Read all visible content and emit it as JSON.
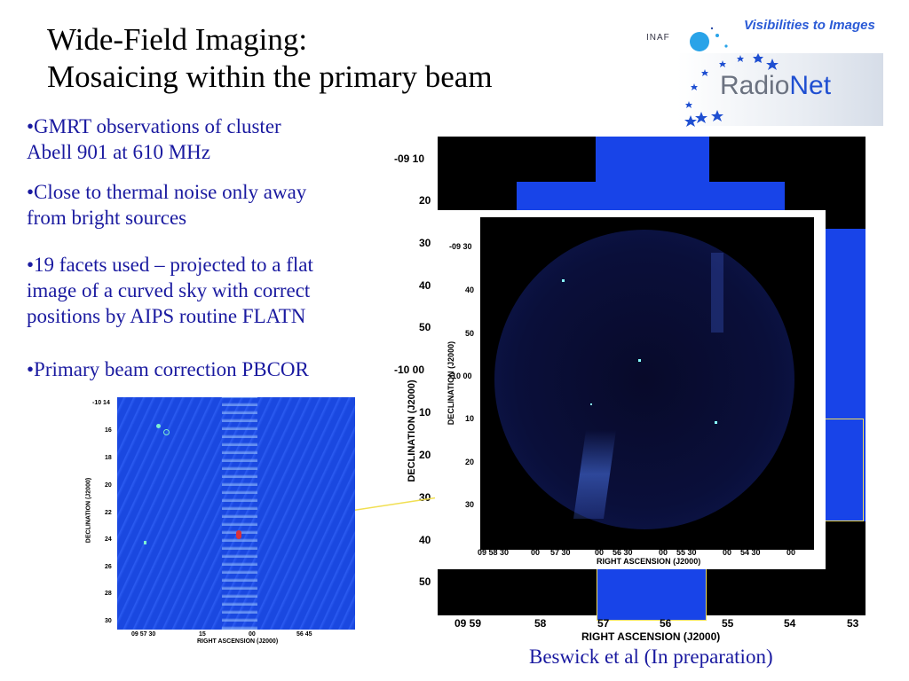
{
  "title": {
    "line1": "Wide-Field Imaging:",
    "line2": "Mosaicing within the primary beam"
  },
  "bullets": [
    {
      "line1": "•GMRT observations of cluster",
      "line2": "Abell 901 at 610 MHz"
    },
    {
      "line1": "•Close to thermal noise only away",
      "line2": "from bright sources"
    },
    {
      "line1": "•19 facets used – projected to a flat",
      "line2": "image of a curved sky with correct",
      "line3": "positions by AIPS routine FLATN"
    },
    {
      "line1": "•Primary beam correction PBCOR"
    }
  ],
  "logo": {
    "tagline": "Visibilities to Images",
    "inaf": "INAF",
    "radionet_a": "Radio",
    "radionet_b": "Net"
  },
  "caption": "Beswick et al (In preparation)",
  "big_map": {
    "ylabel": "DECLINATION (J2000)",
    "xlabel": "RIGHT ASCENSION (J2000)",
    "yticks": [
      "-09 10",
      "20",
      "30",
      "40",
      "50",
      "-10 00",
      "10",
      "20",
      "30",
      "40",
      "50"
    ],
    "xticks": [
      "09 59",
      "58",
      "57",
      "56",
      "55",
      "54",
      "53"
    ]
  },
  "mid_map": {
    "ylabel": "DECLINATION (J2000)",
    "xlabel": "RIGHT ASCENSION (J2000)",
    "yticks": [
      "-09 30",
      "40",
      "50",
      "-10 00",
      "10",
      "20",
      "30"
    ],
    "xticks": [
      "09 58 30",
      "00",
      "57 30",
      "00",
      "56 30",
      "00",
      "55 30",
      "00",
      "54 30",
      "00"
    ]
  },
  "small_map": {
    "ylabel": "DECLINATION (J2000)",
    "xlabel": "RIGHT ASCENSION (J2000)",
    "yticks": [
      "-10 14",
      "16",
      "18",
      "20",
      "22",
      "24",
      "26",
      "28",
      "30"
    ],
    "xticks": [
      "09 57 30",
      "15",
      "00",
      "56 45"
    ]
  },
  "colors": {
    "text_blue": "#1a1aa0",
    "map_blue": "#1844e8",
    "logo_blue": "#2b5bd6"
  }
}
